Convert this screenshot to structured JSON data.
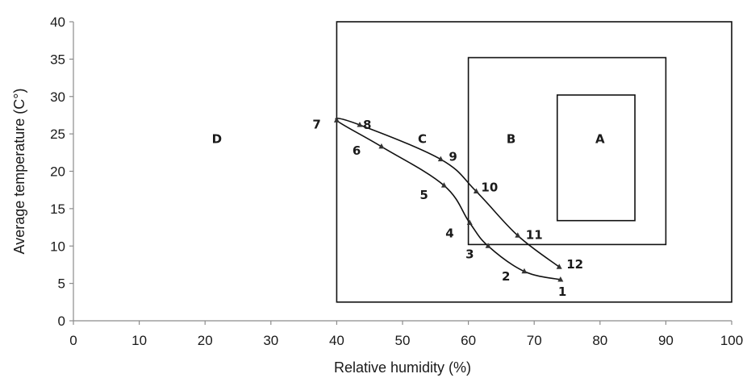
{
  "chart_data": {
    "type": "line",
    "title": "",
    "xlabel": "Relative humidity (%)",
    "ylabel": "Average temperature (C°)",
    "xlim": [
      0,
      100
    ],
    "ylim": [
      0,
      40
    ],
    "x_ticks": [
      0,
      10,
      20,
      30,
      40,
      50,
      60,
      70,
      80,
      90,
      100
    ],
    "y_ticks": [
      0,
      5,
      10,
      15,
      20,
      25,
      30,
      35,
      40
    ],
    "grid": false,
    "series": [
      {
        "points": [
          {
            "label": "1",
            "x": 74.0,
            "y": 5.5
          },
          {
            "label": "2",
            "x": 68.5,
            "y": 6.6
          },
          {
            "label": "3",
            "x": 63.0,
            "y": 10.0
          },
          {
            "label": "4",
            "x": 60.2,
            "y": 13.1
          },
          {
            "label": "5",
            "x": 56.3,
            "y": 18.1
          },
          {
            "label": "6",
            "x": 46.8,
            "y": 23.3
          },
          {
            "label": "7",
            "x": 40.0,
            "y": 26.8
          },
          {
            "label": "8",
            "x": 43.5,
            "y": 26.2
          },
          {
            "label": "9",
            "x": 55.8,
            "y": 21.6
          },
          {
            "label": "10",
            "x": 61.2,
            "y": 17.3
          },
          {
            "label": "11",
            "x": 67.5,
            "y": 11.4
          },
          {
            "label": "12",
            "x": 73.8,
            "y": 7.2
          }
        ]
      }
    ],
    "zones": [
      {
        "label": "A",
        "x": [
          73.5,
          85.3
        ],
        "y": [
          13.4,
          30.2
        ]
      },
      {
        "label": "B",
        "x": [
          60.0,
          90.0
        ],
        "y": [
          10.2,
          35.2
        ]
      },
      {
        "label": "C",
        "x": [
          40.0,
          100.0
        ],
        "y": [
          2.5,
          40.0
        ]
      },
      {
        "label": "D",
        "x": [
          0.0,
          40.0
        ],
        "y": [
          0.0,
          40.0
        ]
      }
    ]
  }
}
